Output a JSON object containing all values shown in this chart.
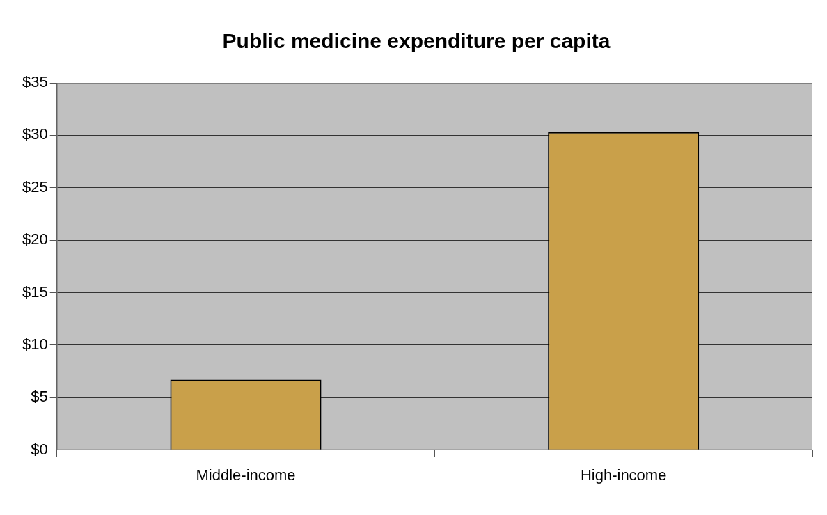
{
  "chart_data": {
    "type": "bar",
    "title": "Public medicine expenditure per capita",
    "categories": [
      "Middle-income",
      "High-income"
    ],
    "values": [
      6.7,
      30.3
    ],
    "color": "#c9a04a",
    "ylim": [
      0,
      35
    ],
    "yticks": [
      {
        "value": 0,
        "label": "$0"
      },
      {
        "value": 5,
        "label": "$5"
      },
      {
        "value": 10,
        "label": "$10"
      },
      {
        "value": 15,
        "label": "$15"
      },
      {
        "value": 20,
        "label": "$20"
      },
      {
        "value": 25,
        "label": "$25"
      },
      {
        "value": 30,
        "label": "$30"
      },
      {
        "value": 35,
        "label": "$35"
      }
    ],
    "grid": "y",
    "legend": false
  }
}
